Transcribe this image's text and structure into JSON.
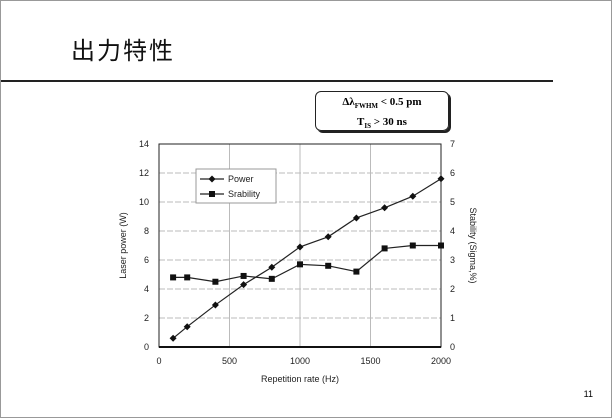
{
  "slide": {
    "title": "出力特性",
    "page_number": "11"
  },
  "conditions": {
    "line1_prefix": "Δλ",
    "line1_sub": "FWHM",
    "line1_suffix": " < 0.5 pm",
    "line2_prefix": "T",
    "line2_sub": "IS",
    "line2_suffix": " > 30 ns"
  },
  "chart_data": {
    "type": "line",
    "xlabel": "Repetition rate (Hz)",
    "ylabel": "Laser power (W)",
    "y2label": "Stability (Sigma,%)",
    "xlim": [
      0,
      2000
    ],
    "ylim": [
      0,
      14
    ],
    "y2lim": [
      0,
      7
    ],
    "xticks": [
      0,
      500,
      1000,
      1500,
      2000
    ],
    "yticks": [
      0,
      2,
      4,
      6,
      8,
      10,
      12,
      14
    ],
    "y2ticks": [
      0,
      1,
      2,
      3,
      4,
      5,
      6,
      7
    ],
    "grid": true,
    "legend_position": "top-left",
    "x": [
      100,
      200,
      400,
      600,
      800,
      1000,
      1200,
      1400,
      1600,
      1800,
      2000
    ],
    "series": [
      {
        "name": "Power",
        "axis": "left",
        "marker": "diamond",
        "values": [
          0.6,
          1.4,
          2.9,
          4.3,
          5.5,
          6.9,
          7.6,
          8.9,
          9.6,
          10.4,
          11.6
        ]
      },
      {
        "name": "Srability",
        "axis": "right",
        "marker": "square",
        "values": [
          2.4,
          2.4,
          2.25,
          2.45,
          2.35,
          2.85,
          2.8,
          2.6,
          3.4,
          3.5,
          3.5
        ]
      }
    ]
  }
}
